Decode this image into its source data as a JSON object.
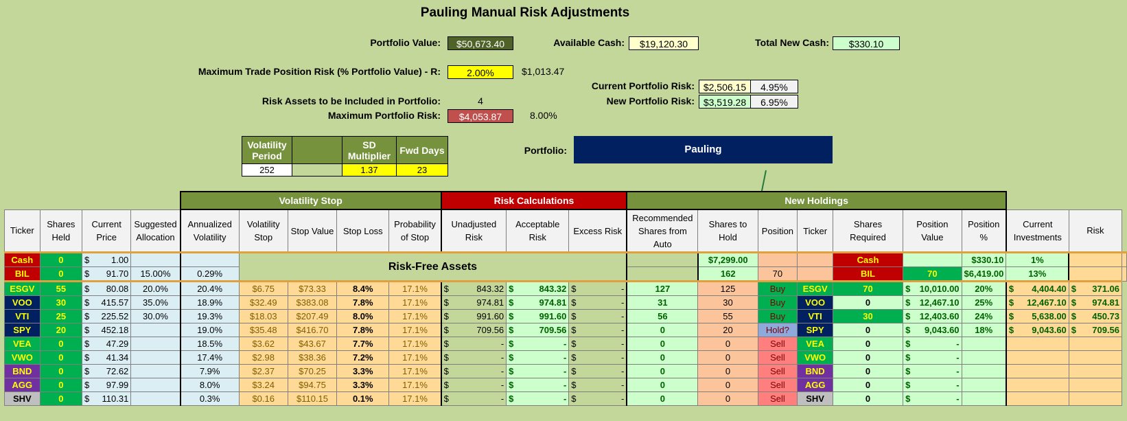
{
  "title": "Pauling Manual Risk Adjustments",
  "summary": {
    "portfolio_value_label": "Portfolio Value:",
    "portfolio_value": "$50,673.40",
    "available_cash_label": "Available Cash:",
    "available_cash": "$19,120.30",
    "total_new_cash_label": "Total New Cash:",
    "total_new_cash": "$330.10",
    "max_trade_risk_label": "Maximum Trade Position Risk (% Portfolio Value) - R:",
    "max_trade_risk_pct": "2.00%",
    "max_trade_risk_amt": "$1,013.47",
    "current_risk_label": "Current Portfolio Risk:",
    "current_risk_amt": "$2,506.15",
    "current_risk_pct": "4.95%",
    "new_risk_label": "New Portfolio Risk:",
    "new_risk_amt": "$3,519.28",
    "new_risk_pct": "6.95%",
    "risk_assets_label": "Risk Assets to be Included in Portfolio:",
    "risk_assets": "4",
    "max_portfolio_risk_label": "Maximum Portfolio Risk:",
    "max_portfolio_risk_amt": "$4,053.87",
    "max_portfolio_risk_pct": "8.00%",
    "portfolio_label": "Portfolio:",
    "portfolio_name": "Pauling"
  },
  "params": {
    "vol_period_label": "Volatility Period",
    "sd_mult_label": "SD Multiplier",
    "fwd_days_label": "Fwd Days",
    "vol_period": "252",
    "sd_mult": "1.37",
    "fwd_days": "23"
  },
  "sections": {
    "vol_stop": "Volatility Stop",
    "risk_calc": "Risk Calculations",
    "new_holdings": "New Holdings",
    "risk_free": "Risk-Free Assets"
  },
  "headers": [
    "Ticker",
    "Shares Held",
    "Current Price",
    "Suggested Allocation",
    "Annualized Volatility",
    "Volatility Stop",
    "Stop Value",
    "Stop Loss",
    "Probability of Stop",
    "Unadjusted Risk",
    "Acceptable Risk",
    "Excess Risk",
    "Recommended Shares from Auto",
    "Shares to Hold",
    "Position",
    "Ticker",
    "Shares Required",
    "Position Value",
    "Position %",
    "Current Investments",
    "Risk"
  ],
  "risk_free_rows": [
    {
      "ticker": "Cash",
      "held": "0",
      "price": "1.00",
      "alloc": "",
      "vol": "",
      "rec": "$7,299.00",
      "hold": "",
      "pos": "",
      "ticker2": "Cash",
      "req": "",
      "value": "$330.10",
      "pct": "1%"
    },
    {
      "ticker": "BIL",
      "held": "0",
      "price": "91.70",
      "alloc": "15.00%",
      "vol": "0.29%",
      "rec": "162",
      "hold": "70",
      "pos": "",
      "ticker2": "BIL",
      "req": "70",
      "value": "6,419.00",
      "pct": "13%"
    }
  ],
  "rows": [
    {
      "ticker": "ESGV",
      "tc": "#00b050",
      "held": "55",
      "price": "80.08",
      "alloc": "20.0%",
      "vol": "20.4%",
      "vstop": "$6.75",
      "sval": "$73.33",
      "sloss": "8.4%",
      "prob": "17.1%",
      "unadj": "843.32",
      "accept": "843.32",
      "excess": "-",
      "rec": "127",
      "hold": "125",
      "pos": "Buy",
      "req": "70",
      "value": "10,010.00",
      "pct": "20%",
      "inv": "4,404.40",
      "risk": "371.06"
    },
    {
      "ticker": "VOO",
      "tc": "#002060",
      "held": "30",
      "price": "415.57",
      "alloc": "35.0%",
      "vol": "18.9%",
      "vstop": "$32.49",
      "sval": "$383.08",
      "sloss": "7.8%",
      "prob": "17.1%",
      "unadj": "974.81",
      "accept": "974.81",
      "excess": "-",
      "rec": "31",
      "hold": "30",
      "pos": "Buy",
      "req": "0",
      "value": "12,467.10",
      "pct": "25%",
      "inv": "12,467.10",
      "risk": "974.81"
    },
    {
      "ticker": "VTI",
      "tc": "#002060",
      "held": "25",
      "price": "225.52",
      "alloc": "30.0%",
      "vol": "19.3%",
      "vstop": "$18.03",
      "sval": "$207.49",
      "sloss": "8.0%",
      "prob": "17.1%",
      "unadj": "991.60",
      "accept": "991.60",
      "excess": "-",
      "rec": "56",
      "hold": "55",
      "pos": "Buy",
      "req": "30",
      "value": "12,403.60",
      "pct": "24%",
      "inv": "5,638.00",
      "risk": "450.73"
    },
    {
      "ticker": "SPY",
      "tc": "#002060",
      "held": "20",
      "price": "452.18",
      "alloc": "",
      "vol": "19.0%",
      "vstop": "$35.48",
      "sval": "$416.70",
      "sloss": "7.8%",
      "prob": "17.1%",
      "unadj": "709.56",
      "accept": "709.56",
      "excess": "-",
      "rec": "0",
      "hold": "20",
      "pos": "Hold?",
      "req": "0",
      "value": "9,043.60",
      "pct": "18%",
      "inv": "9,043.60",
      "risk": "709.56"
    },
    {
      "ticker": "VEA",
      "tc": "#00b050",
      "held": "0",
      "price": "47.29",
      "alloc": "",
      "vol": "18.5%",
      "vstop": "$3.62",
      "sval": "$43.67",
      "sloss": "7.7%",
      "prob": "17.1%",
      "unadj": "-",
      "accept": "-",
      "excess": "-",
      "rec": "0",
      "hold": "0",
      "pos": "Sell",
      "req": "0",
      "value": "-",
      "pct": "",
      "inv": "",
      "risk": ""
    },
    {
      "ticker": "VWO",
      "tc": "#00b050",
      "held": "0",
      "price": "41.34",
      "alloc": "",
      "vol": "17.4%",
      "vstop": "$2.98",
      "sval": "$38.36",
      "sloss": "7.2%",
      "prob": "17.1%",
      "unadj": "-",
      "accept": "-",
      "excess": "-",
      "rec": "0",
      "hold": "0",
      "pos": "Sell",
      "req": "0",
      "value": "-",
      "pct": "",
      "inv": "",
      "risk": ""
    },
    {
      "ticker": "BND",
      "tc": "#7030a0",
      "held": "0",
      "price": "72.62",
      "alloc": "",
      "vol": "7.9%",
      "vstop": "$2.37",
      "sval": "$70.25",
      "sloss": "3.3%",
      "prob": "17.1%",
      "unadj": "-",
      "accept": "-",
      "excess": "-",
      "rec": "0",
      "hold": "0",
      "pos": "Sell",
      "req": "0",
      "value": "-",
      "pct": "",
      "inv": "",
      "risk": ""
    },
    {
      "ticker": "AGG",
      "tc": "#7030a0",
      "held": "0",
      "price": "97.99",
      "alloc": "",
      "vol": "8.0%",
      "vstop": "$3.24",
      "sval": "$94.75",
      "sloss": "3.3%",
      "prob": "17.1%",
      "unadj": "-",
      "accept": "-",
      "excess": "-",
      "rec": "0",
      "hold": "0",
      "pos": "Sell",
      "req": "0",
      "value": "-",
      "pct": "",
      "inv": "",
      "risk": ""
    },
    {
      "ticker": "SHV",
      "tc": "#bfbfbf",
      "held": "0",
      "price": "110.31",
      "alloc": "",
      "vol": "0.3%",
      "vstop": "$0.16",
      "sval": "$110.15",
      "sloss": "0.1%",
      "prob": "17.1%",
      "unadj": "-",
      "accept": "-",
      "excess": "-",
      "rec": "0",
      "hold": "0",
      "pos": "Sell",
      "req": "0",
      "value": "-",
      "pct": "",
      "inv": "",
      "risk": ""
    }
  ],
  "colors": {
    "buy": "#00b050",
    "sell": "#ff7f7f",
    "hold": "#8ea9db",
    "olive": "#76923c",
    "red": "#c00000"
  }
}
